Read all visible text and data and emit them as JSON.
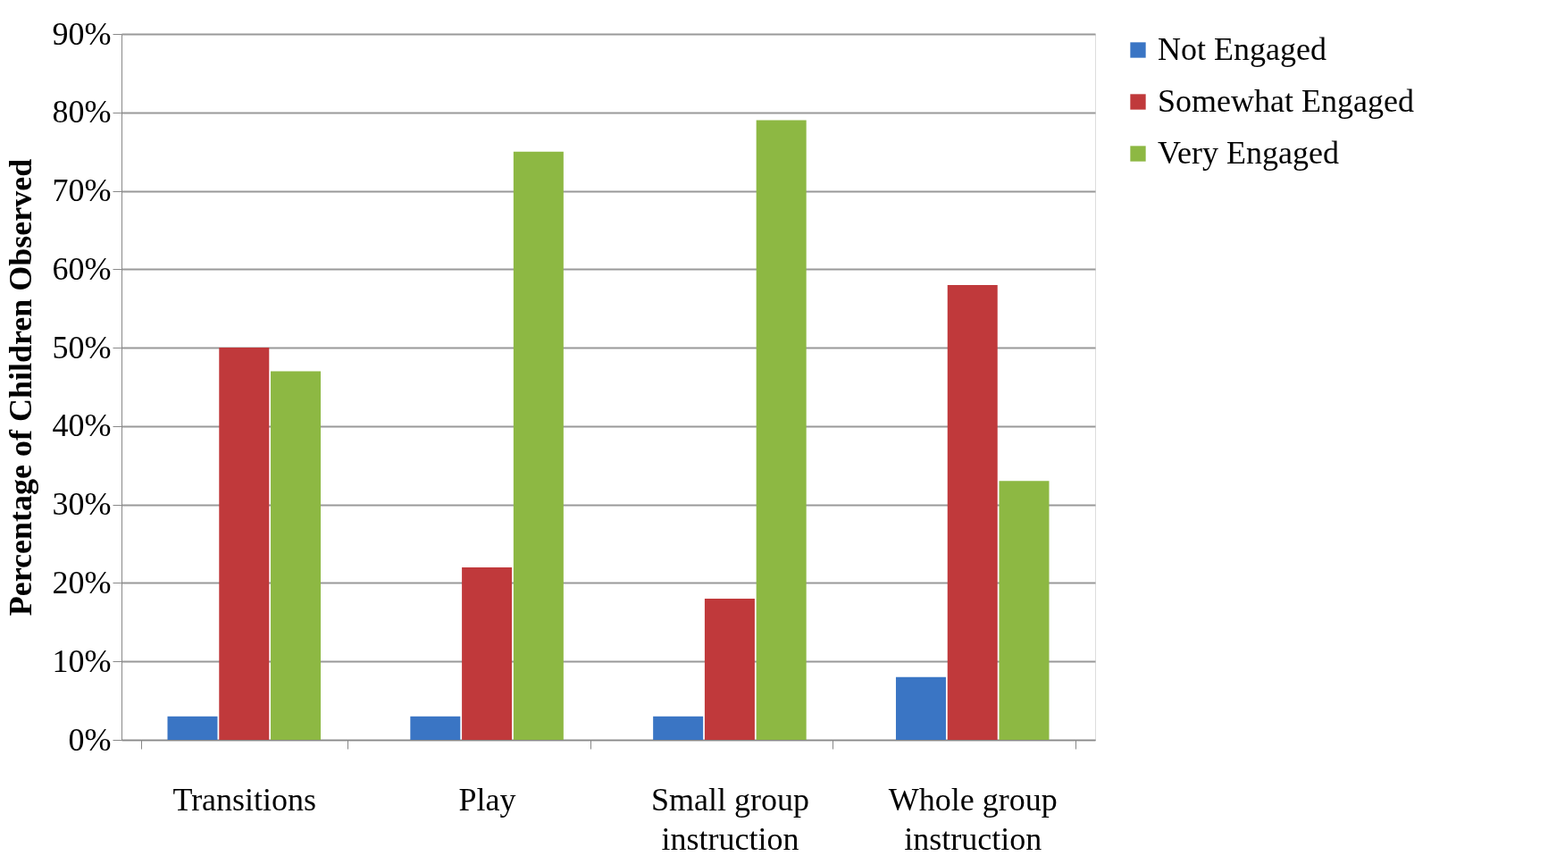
{
  "chart_data": {
    "type": "bar",
    "ylabel": "Percentage of Children Observed",
    "categories": [
      "Transitions",
      "Play",
      "Small group instruction",
      "Whole group instruction"
    ],
    "series": [
      {
        "name": "Not Engaged",
        "color": "#3a75c4",
        "values": [
          3,
          3,
          3,
          8
        ]
      },
      {
        "name": "Somewhat Engaged",
        "color": "#c0393b",
        "values": [
          50,
          22,
          18,
          58
        ]
      },
      {
        "name": "Very Engaged",
        "color": "#8db843",
        "values": [
          47,
          75,
          79,
          33
        ]
      }
    ],
    "ylim": [
      0,
      90
    ],
    "yticks": [
      {
        "value": 0,
        "label": "0%"
      },
      {
        "value": 10,
        "label": "10%"
      },
      {
        "value": 20,
        "label": "20%"
      },
      {
        "value": 30,
        "label": "30%"
      },
      {
        "value": 40,
        "label": "40%"
      },
      {
        "value": 50,
        "label": "50%"
      },
      {
        "value": 60,
        "label": "60%"
      },
      {
        "value": 70,
        "label": "70%"
      },
      {
        "value": 80,
        "label": "80%"
      },
      {
        "value": 90,
        "label": "90%"
      }
    ],
    "grid": "y",
    "legend": "right"
  }
}
